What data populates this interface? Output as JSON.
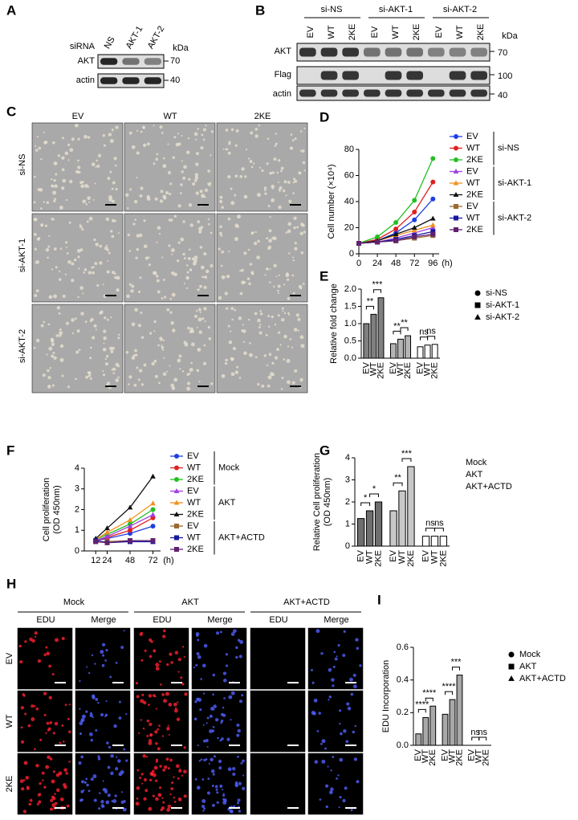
{
  "figure": {
    "letters": [
      "A",
      "B",
      "C",
      "D",
      "E",
      "F",
      "G",
      "H",
      "I"
    ]
  },
  "blot_a": {
    "header": "siRNA",
    "lanes": [
      "NS",
      "AKT-1",
      "AKT-2"
    ],
    "unit": "kDa",
    "rows": [
      "AKT",
      "actin"
    ],
    "markers": [
      70,
      40
    ]
  },
  "blot_b": {
    "groups": [
      "si-NS",
      "si-AKT-1",
      "si-AKT-2"
    ],
    "lanes": [
      "EV",
      "WT",
      "2KE"
    ],
    "unit": "kDa",
    "rows": [
      "AKT",
      "Flag",
      "actin"
    ],
    "markers": [
      70,
      100,
      40
    ]
  },
  "micro_c": {
    "columns": [
      "EV",
      "WT",
      "2KE"
    ],
    "rows": [
      "si-NS",
      "si-AKT-1",
      "si-AKT-2"
    ]
  },
  "micro_h": {
    "groups": [
      "Mock",
      "AKT",
      "AKT+ACTD"
    ],
    "channels": [
      "EDU",
      "Merge"
    ],
    "rows": [
      "EV",
      "WT",
      "2KE"
    ]
  },
  "chart_data": [
    {
      "type": "line",
      "ylabel": [
        "Cell number (×10⁴)"
      ],
      "xlabel": "(h)",
      "x": [
        0,
        24,
        48,
        72,
        96
      ],
      "xlim": [
        0,
        104
      ],
      "xticks": [
        0,
        24,
        48,
        72,
        96
      ],
      "ylim": [
        0,
        80
      ],
      "yticks": [
        0,
        20,
        40,
        60,
        80
      ],
      "legend_groups": [
        "si-NS",
        "si-AKT-1",
        "si-AKT-2"
      ],
      "series": [
        {
          "name": "EV",
          "color": "#1f3fe0",
          "marker": "circle",
          "values": [
            8,
            10,
            16,
            26,
            42
          ]
        },
        {
          "name": "WT",
          "color": "#e02020",
          "marker": "circle",
          "values": [
            8,
            11,
            19,
            32,
            55
          ]
        },
        {
          "name": "2KE",
          "color": "#22c022",
          "marker": "circle",
          "values": [
            8,
            13,
            24,
            41,
            73
          ]
        },
        {
          "name": "EV",
          "color": "#a040e0",
          "marker": "triangle",
          "values": [
            8,
            9,
            12,
            16,
            20
          ]
        },
        {
          "name": "WT",
          "color": "#f09020",
          "marker": "triangle",
          "values": [
            8,
            10,
            14,
            18,
            22
          ]
        },
        {
          "name": "2KE",
          "color": "#111111",
          "marker": "triangle",
          "values": [
            8,
            10,
            15,
            20,
            27
          ]
        },
        {
          "name": "EV",
          "color": "#9a6a30",
          "marker": "square",
          "values": [
            8,
            9,
            10,
            12,
            14
          ]
        },
        {
          "name": "WT",
          "color": "#1818a0",
          "marker": "square",
          "values": [
            8,
            9,
            11,
            14,
            17
          ]
        },
        {
          "name": "2KE",
          "color": "#602070",
          "marker": "square",
          "values": [
            8,
            9,
            10,
            13,
            15
          ]
        }
      ]
    },
    {
      "type": "bar",
      "ylabel": [
        "Relative fold change"
      ],
      "ylim": [
        0,
        2
      ],
      "yticks": [
        {
          "value": 0,
          "label": "0.0"
        },
        {
          "value": 0.5,
          "label": "0.5"
        },
        {
          "value": 1,
          "label": "1.0"
        },
        {
          "value": 1.5,
          "label": "1.5"
        },
        {
          "value": 2,
          "label": "2.0"
        }
      ],
      "categories": [
        "EV",
        "WT",
        "2KE",
        "EV",
        "WT",
        "2KE",
        "EV",
        "WT",
        "2KE"
      ],
      "values": [
        1.0,
        1.27,
        1.75,
        0.42,
        0.55,
        0.65,
        0.33,
        0.38,
        0.4
      ],
      "groups": [
        {
          "name": "si-NS",
          "color": "#808080",
          "marker": "circle"
        },
        {
          "name": "si-AKT-1",
          "color": "#b4b4b4",
          "marker": "square"
        },
        {
          "name": "si-AKT-2",
          "color": "#ffffff",
          "marker": "triangle"
        }
      ],
      "annotations": [
        "**",
        "***",
        "**",
        "**",
        "ns",
        "ns"
      ]
    },
    {
      "type": "line",
      "ylabel": [
        "Cell proliferation",
        "(OD 450nm)"
      ],
      "xlabel": "(h)",
      "x": [
        12,
        24,
        48,
        72
      ],
      "xlim": [
        0,
        80
      ],
      "xticks": [
        12,
        24,
        48,
        72
      ],
      "ylim": [
        0,
        4
      ],
      "yticks": [
        0,
        1,
        2,
        3,
        4
      ],
      "legend_groups": [
        "Mock",
        "AKT",
        "AKT+ACTD"
      ],
      "series": [
        {
          "name": "EV",
          "color": "#1f3fe0",
          "marker": "circle",
          "values": [
            0.5,
            0.6,
            0.85,
            1.2
          ]
        },
        {
          "name": "WT",
          "color": "#e02020",
          "marker": "circle",
          "values": [
            0.5,
            0.65,
            1.0,
            1.6
          ]
        },
        {
          "name": "2KE",
          "color": "#22c022",
          "marker": "circle",
          "values": [
            0.55,
            0.8,
            1.3,
            2.0
          ]
        },
        {
          "name": "EV",
          "color": "#a040e0",
          "marker": "triangle",
          "values": [
            0.5,
            0.7,
            1.2,
            1.75
          ]
        },
        {
          "name": "WT",
          "color": "#f09020",
          "marker": "triangle",
          "values": [
            0.55,
            0.9,
            1.5,
            2.3
          ]
        },
        {
          "name": "2KE",
          "color": "#111111",
          "marker": "triangle",
          "values": [
            0.6,
            1.1,
            2.1,
            3.6
          ]
        },
        {
          "name": "EV",
          "color": "#9a6a30",
          "marker": "square",
          "values": [
            0.45,
            0.45,
            0.5,
            0.5
          ]
        },
        {
          "name": "WT",
          "color": "#1818a0",
          "marker": "square",
          "values": [
            0.5,
            0.4,
            0.45,
            0.45
          ]
        },
        {
          "name": "2KE",
          "color": "#602070",
          "marker": "square",
          "values": [
            0.45,
            0.4,
            0.5,
            0.5
          ]
        }
      ]
    },
    {
      "type": "bar",
      "ylabel": [
        "Relative Cell proliferation",
        "(OD 450nm)"
      ],
      "ylim": [
        0,
        4
      ],
      "yticks": [
        0,
        1,
        2,
        3,
        4
      ],
      "categories": [
        "EV",
        "WT",
        "2KE",
        "EV",
        "WT",
        "2KE",
        "EV",
        "WT",
        "2KE"
      ],
      "values": [
        1.25,
        1.6,
        2.0,
        1.6,
        2.5,
        3.6,
        0.45,
        0.45,
        0.45
      ],
      "groups": [
        {
          "name": "Mock",
          "color": "#6e6e6e"
        },
        {
          "name": "AKT",
          "color": "#c8c8c8"
        },
        {
          "name": "AKT+ACTD",
          "color": "#ffffff"
        }
      ],
      "annotations": [
        "*",
        "*",
        "**",
        "***",
        "ns",
        "ns"
      ]
    },
    {
      "type": "bar",
      "ylabel": [
        "EDU Incorporation"
      ],
      "ylim": [
        0,
        0.6
      ],
      "yticks": [
        {
          "value": 0,
          "label": "0.0"
        },
        {
          "value": 0.2,
          "label": "0.2"
        },
        {
          "value": 0.4,
          "label": "0.4"
        },
        {
          "value": 0.6,
          "label": "0.6"
        }
      ],
      "categories": [
        "EV",
        "WT",
        "2KE",
        "EV",
        "WT",
        "2KE",
        "EV",
        "WT",
        "2KE"
      ],
      "values": [
        0.07,
        0.17,
        0.24,
        0.19,
        0.28,
        0.43,
        0,
        0,
        0
      ],
      "groups": [
        {
          "name": "Mock",
          "color": "#a8a8a8",
          "marker": "circle"
        },
        {
          "name": "AKT",
          "color": "#a8a8a8",
          "marker": "square"
        },
        {
          "name": "AKT+ACTD",
          "color": "#ffffff",
          "marker": "triangle"
        }
      ],
      "annotations": [
        "****",
        "****",
        "****",
        "***",
        "ns",
        "ns"
      ]
    }
  ]
}
